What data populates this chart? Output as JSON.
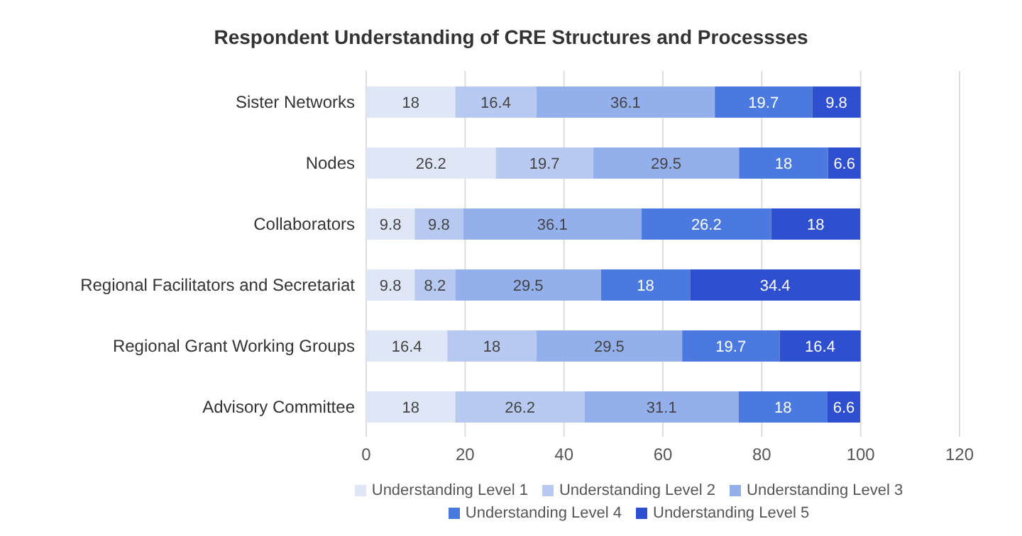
{
  "chart_data": {
    "type": "bar",
    "orientation": "horizontal",
    "stacked": true,
    "title": "Respondent Understanding of CRE Structures and Processses",
    "categories": [
      "Sister Networks",
      "Nodes",
      "Collaborators",
      "Regional Facilitators and Secretariat",
      "Regional Grant Working Groups",
      "Advisory Committee"
    ],
    "series": [
      {
        "name": "Understanding Level 1",
        "color": "#dfe7f7",
        "values": [
          18,
          26.2,
          9.8,
          9.8,
          16.4,
          18
        ]
      },
      {
        "name": "Understanding Level 2",
        "color": "#b7c9f0",
        "values": [
          16.4,
          19.7,
          9.8,
          8.2,
          18,
          26.2
        ]
      },
      {
        "name": "Understanding Level 3",
        "color": "#93b0ec",
        "values": [
          36.1,
          29.5,
          36.1,
          29.5,
          29.5,
          31.1
        ]
      },
      {
        "name": "Understanding Level 4",
        "color": "#4a7ae0",
        "values": [
          19.7,
          18,
          26.2,
          18,
          19.7,
          18
        ]
      },
      {
        "name": "Understanding Level 5",
        "color": "#2d4fd0",
        "values": [
          9.8,
          6.6,
          18,
          34.4,
          16.4,
          6.6
        ]
      }
    ],
    "xlim": [
      0,
      120
    ],
    "xticks": [
      0,
      20,
      40,
      60,
      80,
      100,
      120
    ],
    "grid": "x",
    "legend": "bottom",
    "data_labels": true
  }
}
